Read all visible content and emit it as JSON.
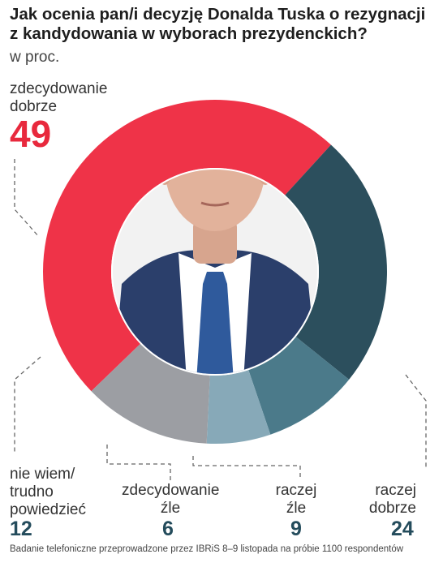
{
  "title_lines": [
    "Jak ocenia pan/i decyzję Donalda Tuska o rezygnacji",
    "z kandydowania w wyborach prezydenckich?"
  ],
  "subtitle": "w proc.",
  "footer": "Badanie telefoniczne przeprowadzone przez IBRiS 8–9 listopada na próbie 1100 respondentów",
  "labels": {
    "zdecydowanie_dobrze": {
      "lines": [
        "zdecydowanie",
        "dobrze"
      ],
      "value": "49"
    },
    "nie_wiem": {
      "lines": [
        "nie wiem/",
        "trudno",
        "powiedzieć"
      ],
      "value": "12"
    },
    "zdecydowanie_zle": {
      "lines": [
        "zdecydowanie",
        "źle"
      ],
      "value": "6"
    },
    "raczej_zle": {
      "lines": [
        "raczej",
        "źle"
      ],
      "value": "9"
    },
    "raczej_dobrze": {
      "lines": [
        "raczej",
        "dobrze"
      ],
      "value": "24"
    }
  },
  "chart_data": {
    "type": "pie",
    "style": "donut",
    "unit": "w proc.",
    "slices": [
      {
        "label": "zdecydowanie dobrze",
        "value": 49,
        "color": "#ef3348"
      },
      {
        "label": "raczej dobrze",
        "value": 24,
        "color": "#2c4f5d"
      },
      {
        "label": "raczej źle",
        "value": 9,
        "color": "#4b7a8a"
      },
      {
        "label": "zdecydowanie źle",
        "value": 6,
        "color": "#87a9b8"
      },
      {
        "label": "nie wiem/trudno powiedzieć",
        "value": 12,
        "color": "#9c9ea3"
      }
    ],
    "center_image": "portrait-photo"
  }
}
